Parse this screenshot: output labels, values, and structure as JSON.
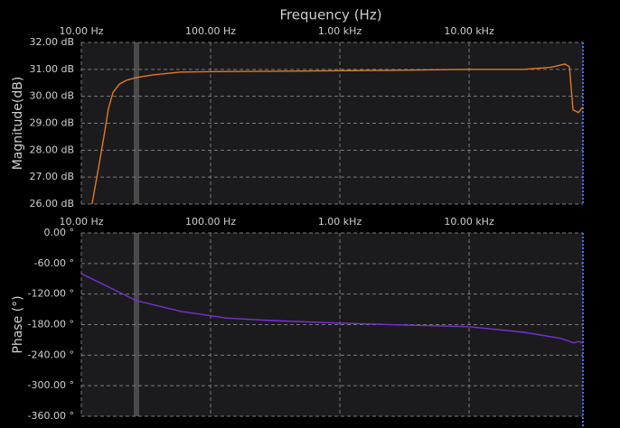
{
  "chart_data": [
    {
      "type": "line",
      "title": "Frequency (Hz)",
      "ylabel": "Magnitude(dB)",
      "log_x": true,
      "grid": true,
      "xlim": [
        10,
        76000
      ],
      "xticks": [
        {
          "value": 10,
          "label": "10.00 Hz"
        },
        {
          "value": 100,
          "label": "100.00 Hz"
        },
        {
          "value": 1000,
          "label": "1.00 kHz"
        },
        {
          "value": 10000,
          "label": "10.00 kHz"
        }
      ],
      "ylim": [
        26,
        32
      ],
      "yticks": [
        {
          "value": 26,
          "label": "26.00 dB"
        },
        {
          "value": 27,
          "label": "27.00 dB"
        },
        {
          "value": 28,
          "label": "28.00 dB"
        },
        {
          "value": 29,
          "label": "29.00 dB"
        },
        {
          "value": 30,
          "label": "30.00 dB"
        },
        {
          "value": 31,
          "label": "31.00 dB"
        },
        {
          "value": 32,
          "label": "32.00 dB"
        }
      ],
      "x": [
        12.1,
        13.8,
        15,
        16.2,
        17.6,
        19.7,
        22.4,
        26.7,
        36.3,
        58.8,
        131,
        294,
        1000,
        3290,
        10000,
        26700,
        43300,
        55000,
        59700,
        63700,
        70100,
        76000
      ],
      "series": [
        {
          "color": "#e07a1f",
          "values": [
            26,
            27.54,
            28.55,
            29.55,
            30.15,
            30.45,
            30.6,
            30.7,
            30.8,
            30.9,
            30.92,
            30.93,
            30.95,
            30.97,
            31,
            31,
            31.08,
            31.2,
            31.1,
            29.5,
            29.4,
            29.6
          ]
        }
      ]
    },
    {
      "type": "line",
      "ylabel": "Phase (°)",
      "log_x": true,
      "grid": true,
      "xlim": [
        10,
        76000
      ],
      "xticks": [
        {
          "value": 10,
          "label": "10.00 Hz"
        },
        {
          "value": 100,
          "label": "100.00 Hz"
        },
        {
          "value": 1000,
          "label": "1.00 kHz"
        },
        {
          "value": 10000,
          "label": "10.00 kHz"
        }
      ],
      "ylim": [
        -360,
        0
      ],
      "yticks": [
        {
          "value": 0,
          "label": "0.00 °"
        },
        {
          "value": -60,
          "label": "-60.00 °"
        },
        {
          "value": -120,
          "label": "-120.00 °"
        },
        {
          "value": -180,
          "label": "-180.00 °"
        },
        {
          "value": -240,
          "label": "-240.00 °"
        },
        {
          "value": -300,
          "label": "-300.00 °"
        },
        {
          "value": -360,
          "label": "-360.00 °"
        }
      ],
      "x": [
        10,
        16.2,
        26.7,
        58.8,
        131,
        294,
        1000,
        3290,
        10000,
        26700,
        50900,
        65000,
        70100,
        76000
      ],
      "series": [
        {
          "color": "#7a2fd6",
          "values": [
            -80,
            -106,
            -133,
            -154,
            -167,
            -172,
            -177,
            -181,
            -184,
            -195,
            -207,
            -216,
            -213,
            -216
          ]
        }
      ]
    }
  ]
}
